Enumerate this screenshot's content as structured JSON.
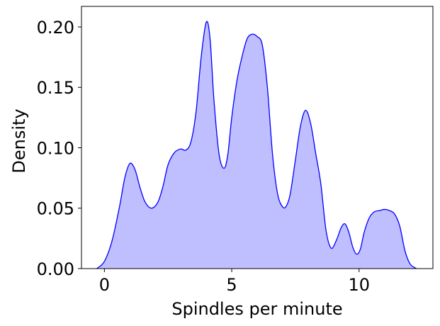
{
  "chart_data": {
    "type": "area",
    "title": "",
    "xlabel": "Spindles per minute",
    "ylabel": "Density",
    "xlim": [
      -0.9,
      12.9
    ],
    "ylim": [
      0,
      0.217
    ],
    "xticks": [
      0,
      5,
      10
    ],
    "xtick_labels": [
      "0",
      "5",
      "10"
    ],
    "yticks": [
      0.0,
      0.05,
      0.1,
      0.15,
      0.2
    ],
    "ytick_labels": [
      "0.00",
      "0.05",
      "0.10",
      "0.15",
      "0.20"
    ],
    "grid": false,
    "series": [
      {
        "line_color": "#0000ff",
        "fill_color": "#bfbfff",
        "x": [
          -0.3,
          0.0,
          0.3,
          0.6,
          0.8,
          1.0,
          1.2,
          1.4,
          1.6,
          1.85,
          2.1,
          2.3,
          2.5,
          2.75,
          3.0,
          3.2,
          3.4,
          3.6,
          3.8,
          4.0,
          4.15,
          4.3,
          4.5,
          4.7,
          4.85,
          5.0,
          5.2,
          5.4,
          5.6,
          5.8,
          6.0,
          6.2,
          6.4,
          6.6,
          6.8,
          7.0,
          7.15,
          7.3,
          7.5,
          7.7,
          7.9,
          8.1,
          8.3,
          8.5,
          8.7,
          8.9,
          9.1,
          9.3,
          9.45,
          9.6,
          9.75,
          9.9,
          10.05,
          10.2,
          10.4,
          10.6,
          10.8,
          11.0,
          11.2,
          11.4,
          11.6,
          11.8,
          12.0,
          12.25
        ],
        "y": [
          0.0,
          0.006,
          0.023,
          0.052,
          0.075,
          0.087,
          0.082,
          0.067,
          0.055,
          0.05,
          0.055,
          0.068,
          0.086,
          0.096,
          0.099,
          0.098,
          0.105,
          0.13,
          0.175,
          0.204,
          0.19,
          0.14,
          0.095,
          0.083,
          0.095,
          0.125,
          0.155,
          0.175,
          0.19,
          0.194,
          0.192,
          0.185,
          0.15,
          0.095,
          0.062,
          0.051,
          0.052,
          0.062,
          0.09,
          0.118,
          0.131,
          0.12,
          0.095,
          0.07,
          0.032,
          0.017,
          0.023,
          0.034,
          0.037,
          0.03,
          0.018,
          0.012,
          0.016,
          0.03,
          0.042,
          0.047,
          0.048,
          0.049,
          0.048,
          0.045,
          0.035,
          0.015,
          0.004,
          0.0
        ]
      }
    ]
  }
}
